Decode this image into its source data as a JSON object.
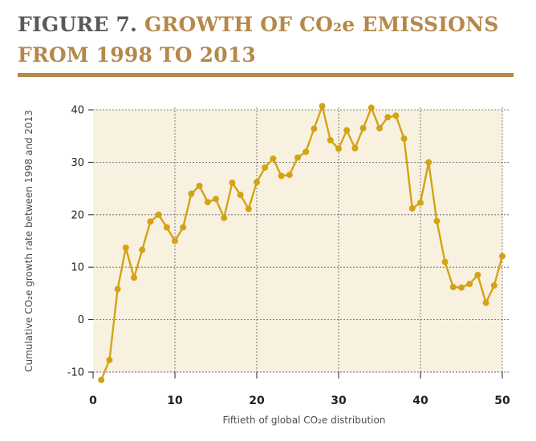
{
  "figure": {
    "label": "FIGURE 7.",
    "title": "GROWTH OF CO₂e EMISSIONS FROM 1998 TO 2013"
  },
  "colors": {
    "title_label": "#58595b",
    "title_text": "#b5884b",
    "plot_background": "#f9f1e0",
    "series": "#d3a316",
    "grid": "#5a5a5a"
  },
  "chart_data": {
    "type": "line",
    "title": "",
    "xlabel": "Fiftieth of global CO₂e distribution",
    "ylabel": "Cumulative CO₂e growth rate between 1998 and 2013",
    "xlim": [
      0,
      50
    ],
    "ylim": [
      -10,
      40
    ],
    "xticks": [
      0,
      10,
      20,
      30,
      40,
      50
    ],
    "yticks": [
      -10,
      0,
      10,
      20,
      30,
      40
    ],
    "grid": true,
    "grid_style": "dashed",
    "legend": "none",
    "markers": true,
    "series": [
      {
        "x": [
          1,
          2,
          3,
          4,
          5,
          6,
          7,
          8,
          9,
          10,
          11,
          12,
          13,
          14,
          15,
          16,
          17,
          18,
          19,
          20,
          21,
          22,
          23,
          24,
          25,
          26,
          27,
          28,
          29,
          30,
          31,
          32,
          33,
          34,
          35,
          36,
          37,
          38,
          39,
          40,
          41,
          42,
          43,
          44,
          45,
          46,
          47,
          48,
          49,
          50
        ],
        "values": [
          -11.5,
          -7.7,
          5.8,
          13.7,
          8.0,
          13.3,
          18.7,
          20.0,
          17.6,
          15.0,
          17.6,
          24.0,
          25.5,
          22.4,
          23.0,
          19.4,
          26.1,
          23.8,
          21.1,
          26.2,
          29.0,
          30.7,
          27.4,
          27.6,
          30.9,
          32.0,
          36.4,
          40.7,
          34.2,
          32.6,
          36.1,
          32.7,
          36.5,
          40.4,
          36.5,
          38.6,
          38.9,
          34.5,
          21.2,
          22.3,
          30.0,
          18.8,
          11.0,
          6.2,
          6.1,
          6.8,
          8.5,
          3.2,
          6.5,
          12.1
        ]
      }
    ]
  }
}
